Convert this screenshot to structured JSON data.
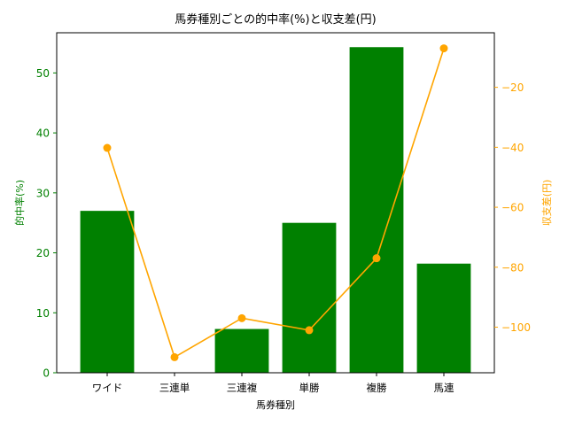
{
  "chart_data": {
    "type": "bar",
    "title": "馬券種別ごとの的中率(%)と収支差(円)",
    "xlabel": "馬券種別",
    "categories": [
      "ワイド",
      "三連単",
      "三連複",
      "単勝",
      "複勝",
      "馬連"
    ],
    "series": [
      {
        "type": "bar",
        "axis": "left",
        "color": "#008000",
        "values": [
          27.0,
          0.0,
          7.3,
          25.0,
          54.3,
          18.2
        ]
      },
      {
        "type": "line",
        "axis": "right",
        "color": "#FFA500",
        "marker": "circle",
        "values": [
          -40.2,
          -110.0,
          -97.0,
          -101.0,
          -77.0,
          -7.0
        ]
      }
    ],
    "y_left": {
      "label": "的中率(%)",
      "color": "#008000",
      "ylim": [
        0,
        56.7
      ],
      "ticks": [
        0,
        10,
        20,
        30,
        40,
        50
      ],
      "tick_labels": [
        "0",
        "10",
        "20",
        "30",
        "40",
        "50"
      ]
    },
    "y_right": {
      "label": "収支差(円)",
      "color": "#FFA500",
      "ylim": [
        -115.2,
        -1.8
      ],
      "ticks": [
        -100,
        -80,
        -60,
        -40,
        -20
      ],
      "tick_labels": [
        "−100",
        "−80",
        "−60",
        "−40",
        "−20"
      ]
    },
    "grid": false,
    "legend": "none"
  }
}
